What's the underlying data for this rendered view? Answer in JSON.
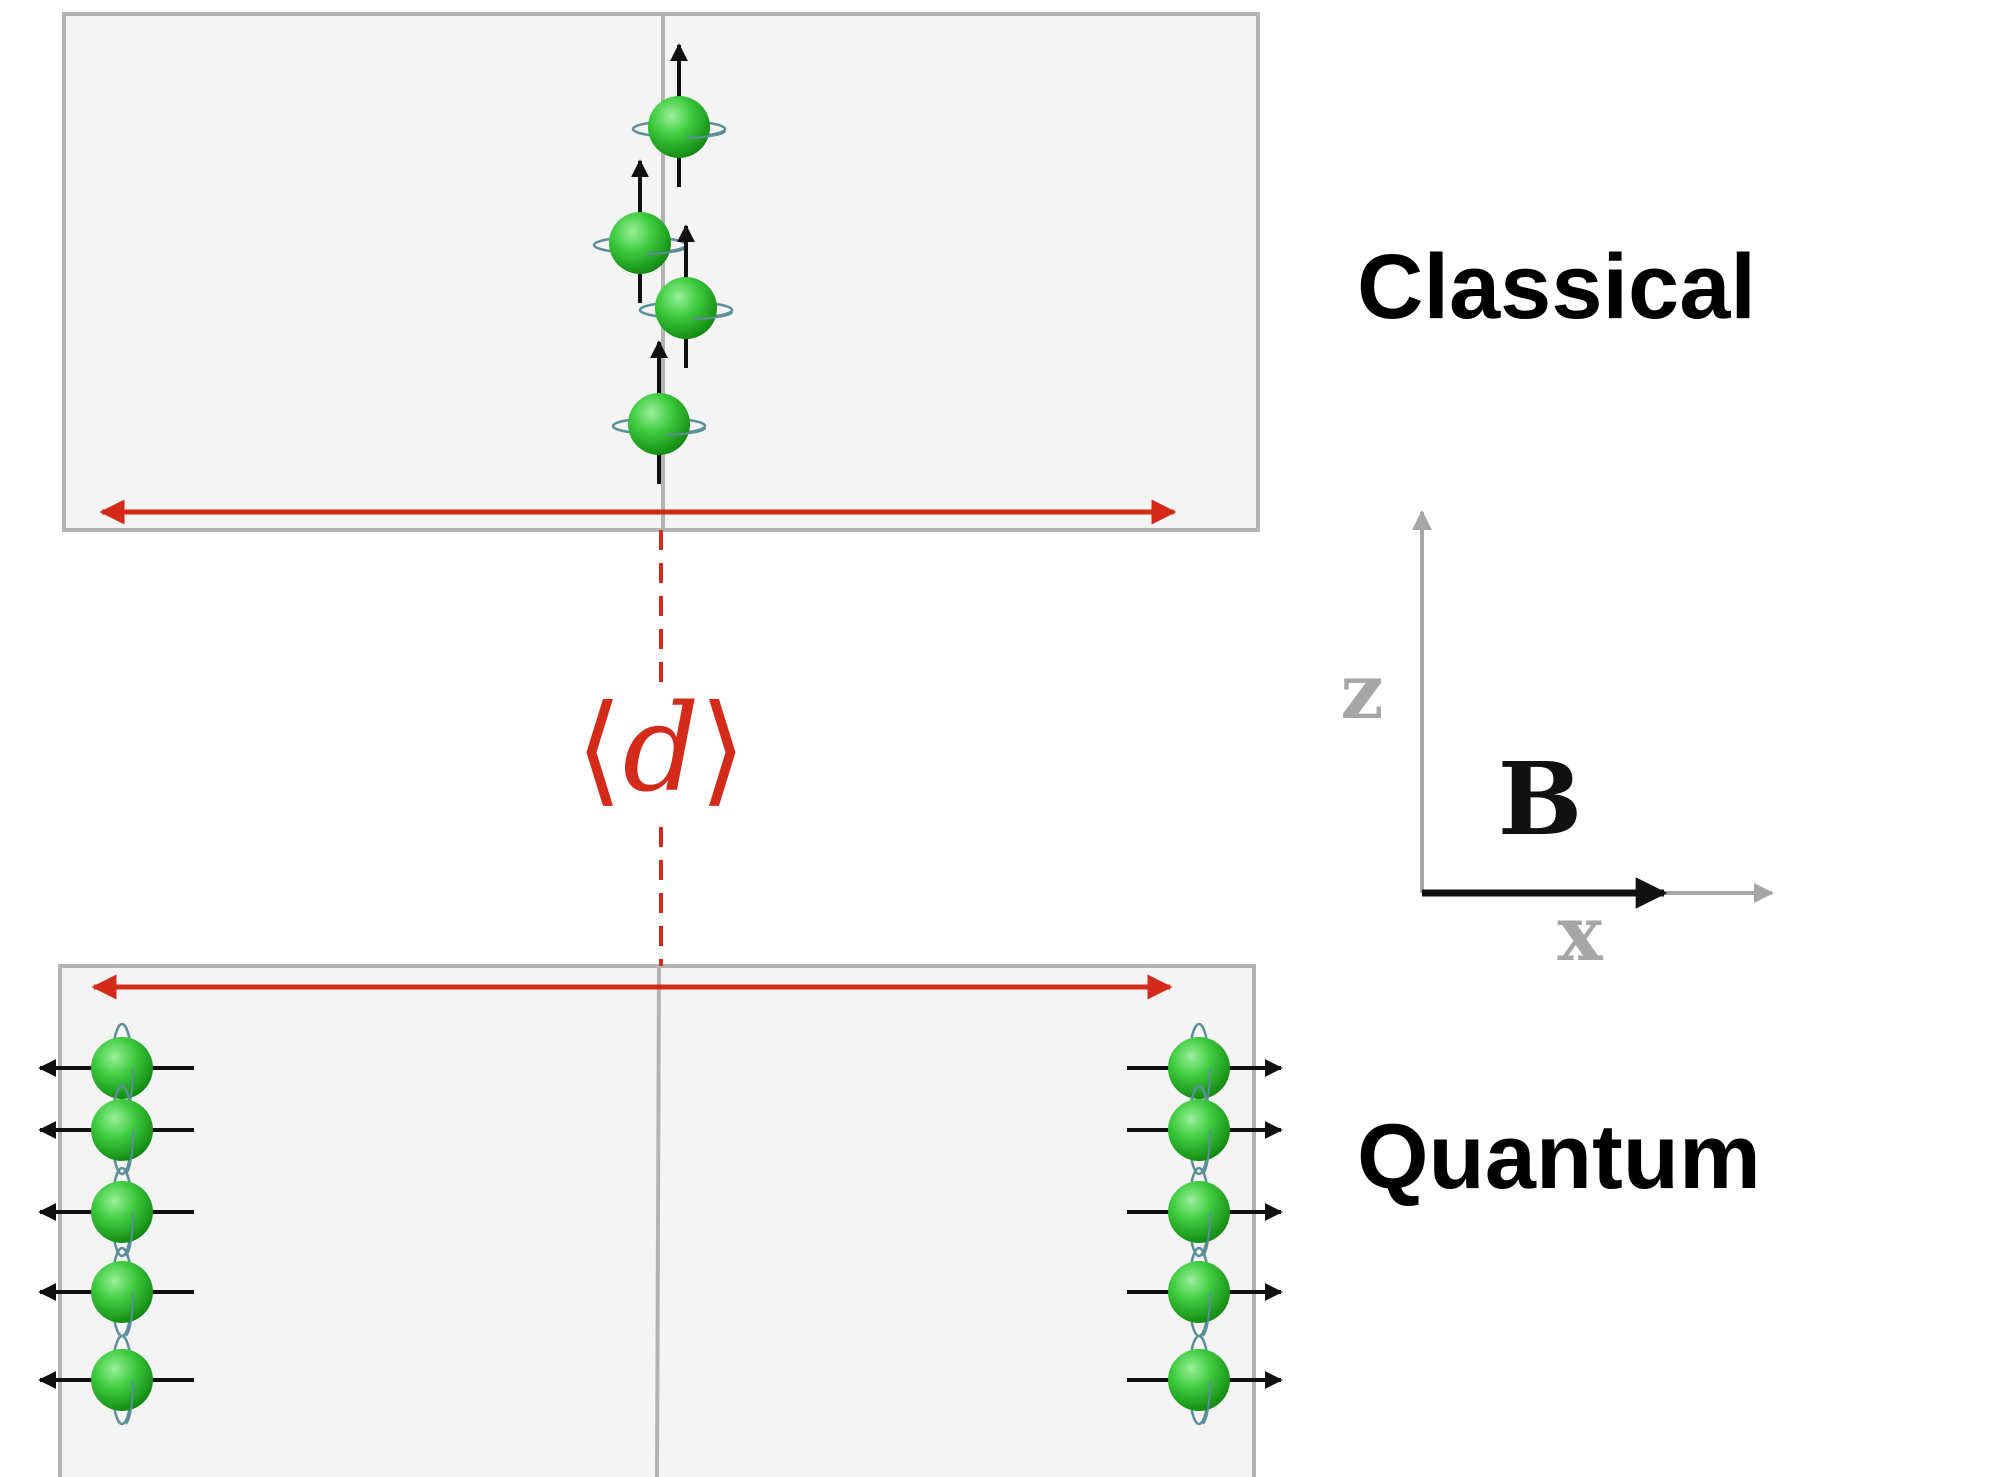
{
  "panels": {
    "classical": {
      "label": "Classical",
      "spin_direction": "up",
      "spin_count": 4
    },
    "quantum": {
      "label": "Quantum",
      "spin_direction": "left-right superposition",
      "spin_count_per_side": 5
    }
  },
  "separation": {
    "open": "⟨",
    "symbol": "d",
    "close": "⟩"
  },
  "axes": {
    "vertical": "z",
    "horizontal": "x",
    "field": "B"
  },
  "colors": {
    "panel_fill": "#f4f4f4",
    "panel_border": "#b3b3b3",
    "separation": "#d42a1a",
    "axis": "#a6a6a6",
    "arrow": "#111111",
    "sphere": "#2fbf2f"
  }
}
